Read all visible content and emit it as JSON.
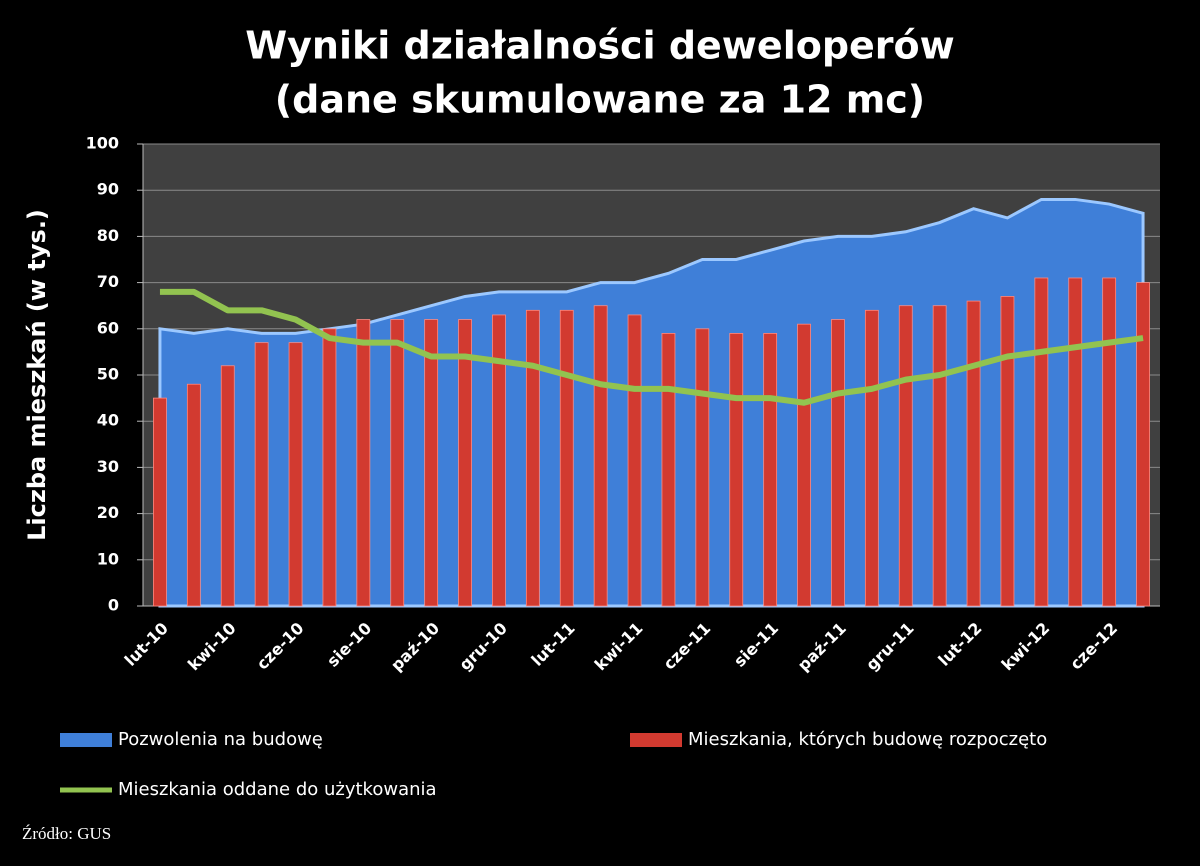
{
  "chart_data": {
    "type": "combo",
    "title": "Wyniki działalności deweloperów",
    "subtitle": "(dane skumulowane za 12 mc)",
    "y_label": "Liczba mieszkań (w tys.)",
    "source": "Źródło: GUS",
    "categories": [
      "lut-10",
      null,
      "kwi-10",
      null,
      "cze-10",
      null,
      "sie-10",
      null,
      "paź-10",
      null,
      "gru-10",
      null,
      "lut-11",
      null,
      "kwi-11",
      null,
      "cze-11",
      null,
      "sie-11",
      null,
      "paź-11",
      null,
      "gru-11",
      null,
      "lut-12",
      null,
      "kwi-12",
      null,
      "cze-12",
      null
    ],
    "series": [
      {
        "name": "Pozwolenia na budowę",
        "kind": "area",
        "color": "#3f7fd8",
        "values": [
          60,
          59,
          60,
          59,
          59,
          60,
          61,
          63,
          65,
          67,
          68,
          68,
          68,
          70,
          70,
          72,
          75,
          75,
          77,
          79,
          80,
          80,
          81,
          83,
          86,
          84,
          88,
          88,
          87,
          85
        ]
      },
      {
        "name": "Mieszkania, których budowę rozpoczęto",
        "kind": "bar",
        "color": "#d23a30",
        "values": [
          45,
          48,
          52,
          57,
          57,
          60,
          62,
          62,
          62,
          62,
          63,
          64,
          64,
          65,
          63,
          59,
          60,
          59,
          59,
          61,
          62,
          64,
          65,
          65,
          66,
          67,
          71,
          71,
          71,
          70
        ]
      },
      {
        "name": "Mieszkania oddane  do użytkowania",
        "kind": "line",
        "color": "#92c350",
        "values": [
          68,
          68,
          64,
          64,
          62,
          58,
          57,
          57,
          54,
          54,
          53,
          52,
          50,
          48,
          47,
          47,
          46,
          45,
          45,
          44,
          46,
          47,
          49,
          50,
          52,
          54,
          55,
          56,
          57,
          58
        ]
      }
    ],
    "ylim": [
      0,
      100
    ],
    "yticks": [
      0,
      10,
      20,
      30,
      40,
      50,
      60,
      70,
      80,
      90,
      100
    ],
    "grid": true
  }
}
